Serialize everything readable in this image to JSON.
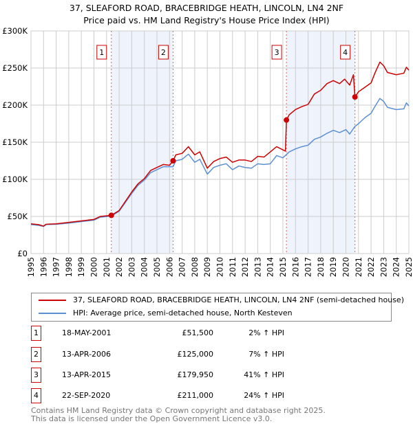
{
  "chart_data": {
    "type": "line",
    "title": "37, SLEAFORD ROAD, BRACEBRIDGE HEATH, LINCOLN, LN4 2NF",
    "subtitle": "Price paid vs. HM Land Registry's House Price Index (HPI)",
    "xlim": [
      1995,
      2025
    ],
    "ylim": [
      0,
      300000
    ],
    "x_ticks": [
      "1995",
      "1996",
      "1997",
      "1998",
      "1999",
      "2000",
      "2001",
      "2002",
      "2003",
      "2004",
      "2005",
      "2006",
      "2007",
      "2008",
      "2009",
      "2010",
      "2011",
      "2012",
      "2013",
      "2014",
      "2015",
      "2016",
      "2017",
      "2018",
      "2019",
      "2020",
      "2021",
      "2022",
      "2023",
      "2024",
      "2025"
    ],
    "y_ticks": [
      {
        "v": 0,
        "l": "£0"
      },
      {
        "v": 50000,
        "l": "£50K"
      },
      {
        "v": 100000,
        "l": "£100K"
      },
      {
        "v": 150000,
        "l": "£150K"
      },
      {
        "v": 200000,
        "l": "£200K"
      },
      {
        "v": 250000,
        "l": "£250K"
      },
      {
        "v": 300000,
        "l": "£300K"
      }
    ],
    "grid": true,
    "series": [
      {
        "name": "37, SLEAFORD ROAD, BRACEBRIDGE HEATH, LINCOLN, LN4 2NF (semi-detached house)",
        "color": "#cc0000",
        "points": [
          [
            1995,
            40000
          ],
          [
            1995.6,
            39000
          ],
          [
            1996,
            37000
          ],
          [
            1996.2,
            39500
          ],
          [
            1997,
            40000
          ],
          [
            1998,
            42000
          ],
          [
            1999,
            44000
          ],
          [
            2000,
            46000
          ],
          [
            2000.5,
            50000
          ],
          [
            2001.38,
            51500
          ],
          [
            2002,
            58000
          ],
          [
            2003,
            83000
          ],
          [
            2003.5,
            94000
          ],
          [
            2004,
            101000
          ],
          [
            2004.5,
            112000
          ],
          [
            2005,
            116000
          ],
          [
            2005.5,
            120000
          ],
          [
            2006.0,
            119000
          ],
          [
            2006.28,
            125000
          ],
          [
            2006.5,
            133000
          ],
          [
            2007,
            135000
          ],
          [
            2007.5,
            144000
          ],
          [
            2008,
            133000
          ],
          [
            2008.4,
            137000
          ],
          [
            2009,
            115000
          ],
          [
            2009.5,
            124000
          ],
          [
            2010,
            128000
          ],
          [
            2010.5,
            130000
          ],
          [
            2011,
            123000
          ],
          [
            2011.5,
            126000
          ],
          [
            2012,
            126000
          ],
          [
            2012.5,
            124000
          ],
          [
            2013,
            131000
          ],
          [
            2013.5,
            130000
          ],
          [
            2014,
            137000
          ],
          [
            2014.5,
            144000
          ],
          [
            2015.2,
            138000
          ],
          [
            2015.28,
            179950
          ],
          [
            2015.5,
            187000
          ],
          [
            2016,
            194000
          ],
          [
            2016.5,
            198000
          ],
          [
            2017,
            201000
          ],
          [
            2017.5,
            215000
          ],
          [
            2018,
            220000
          ],
          [
            2018.5,
            229000
          ],
          [
            2019,
            233000
          ],
          [
            2019.5,
            229000
          ],
          [
            2019.9,
            235000
          ],
          [
            2020.3,
            227000
          ],
          [
            2020.6,
            241000
          ],
          [
            2020.72,
            211000
          ],
          [
            2021,
            218000
          ],
          [
            2021.5,
            224000
          ],
          [
            2022,
            230000
          ],
          [
            2022.3,
            243000
          ],
          [
            2022.7,
            258000
          ],
          [
            2023,
            253000
          ],
          [
            2023.3,
            244000
          ],
          [
            2024,
            241000
          ],
          [
            2024.6,
            243000
          ],
          [
            2024.8,
            251000
          ],
          [
            2025,
            247000
          ]
        ]
      },
      {
        "name": "HPI: Average price, semi-detached house, North Kesteven",
        "color": "#5b8fd4",
        "points": [
          [
            1995,
            39000
          ],
          [
            1995.6,
            38000
          ],
          [
            1996,
            36500
          ],
          [
            1996.2,
            39000
          ],
          [
            1997,
            39500
          ],
          [
            1998,
            41000
          ],
          [
            1999,
            43000
          ],
          [
            2000,
            45000
          ],
          [
            2000.5,
            49000
          ],
          [
            2001.38,
            50500
          ],
          [
            2002,
            57000
          ],
          [
            2003,
            81000
          ],
          [
            2003.5,
            92000
          ],
          [
            2004,
            99000
          ],
          [
            2004.5,
            109000
          ],
          [
            2005,
            113000
          ],
          [
            2005.5,
            117000
          ],
          [
            2006.0,
            117000
          ],
          [
            2006.28,
            117000
          ],
          [
            2006.5,
            125000
          ],
          [
            2007,
            127000
          ],
          [
            2007.5,
            134000
          ],
          [
            2008,
            123000
          ],
          [
            2008.4,
            127000
          ],
          [
            2009,
            107000
          ],
          [
            2009.5,
            116000
          ],
          [
            2010,
            119000
          ],
          [
            2010.5,
            121000
          ],
          [
            2011,
            113000
          ],
          [
            2011.5,
            118000
          ],
          [
            2012,
            116000
          ],
          [
            2012.5,
            115000
          ],
          [
            2013,
            121000
          ],
          [
            2013.5,
            120000
          ],
          [
            2014,
            121000
          ],
          [
            2014.5,
            132000
          ],
          [
            2015,
            129000
          ],
          [
            2015.5,
            137000
          ],
          [
            2016,
            141000
          ],
          [
            2016.5,
            144000
          ],
          [
            2017,
            146000
          ],
          [
            2017.5,
            154000
          ],
          [
            2018,
            157000
          ],
          [
            2018.5,
            162000
          ],
          [
            2019,
            166000
          ],
          [
            2019.5,
            163000
          ],
          [
            2020,
            167000
          ],
          [
            2020.3,
            161000
          ],
          [
            2020.7,
            171000
          ],
          [
            2021,
            175000
          ],
          [
            2021.5,
            183000
          ],
          [
            2022,
            189000
          ],
          [
            2022.3,
            198000
          ],
          [
            2022.7,
            209000
          ],
          [
            2023,
            205000
          ],
          [
            2023.3,
            197000
          ],
          [
            2024,
            194000
          ],
          [
            2024.6,
            195000
          ],
          [
            2024.8,
            203000
          ],
          [
            2025,
            199000
          ]
        ]
      }
    ],
    "sales": [
      {
        "label": "1",
        "date": "18-MAY-2001",
        "x": 2001.38,
        "price_value": 51500,
        "price": "£51,500",
        "hpi": "2% ↑ HPI"
      },
      {
        "label": "2",
        "date": "13-APR-2006",
        "x": 2006.28,
        "price_value": 125000,
        "price": "£125,000",
        "hpi": "7% ↑ HPI"
      },
      {
        "label": "3",
        "date": "13-APR-2015",
        "x": 2015.28,
        "price_value": 179950,
        "price": "£179,950",
        "hpi": "41% ↑ HPI"
      },
      {
        "label": "4",
        "date": "22-SEP-2020",
        "x": 2020.72,
        "price_value": 211000,
        "price": "£211,000",
        "hpi": "24% ↑ HPI"
      }
    ],
    "shaded": [
      [
        2001.38,
        2006.28
      ],
      [
        2015.28,
        2020.72
      ]
    ],
    "legend_position": "below"
  },
  "footer": {
    "line1": "Contains HM Land Registry data © Crown copyright and database right 2025.",
    "line2": "This data is licensed under the Open Government Licence v3.0."
  }
}
